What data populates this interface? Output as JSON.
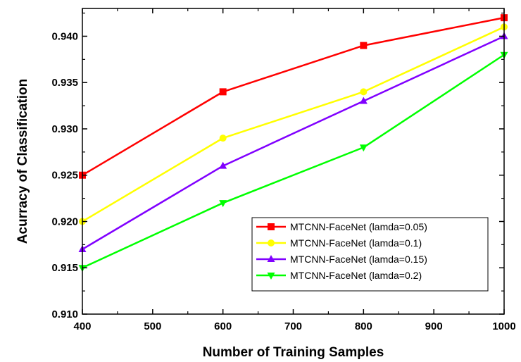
{
  "chart_data": {
    "type": "line",
    "xlabel": "Number of Training Samples",
    "ylabel": "Acurracy of Classification",
    "xlim": [
      400,
      1000
    ],
    "ylim": [
      0.91,
      0.943
    ],
    "x_ticks": [
      "400",
      "500",
      "600",
      "700",
      "800",
      "900",
      "1000"
    ],
    "y_ticks": [
      "0.910",
      "0.915",
      "0.920",
      "0.925",
      "0.930",
      "0.935",
      "0.940"
    ],
    "grid": false,
    "legend_position": "lower-right",
    "x": [
      400,
      600,
      800,
      1000
    ],
    "series": [
      {
        "name": "MTCNN-FaceNet  (lamda=0.05)",
        "color": "#ff0000",
        "marker": "square",
        "values": [
          0.925,
          0.934,
          0.939,
          0.942
        ]
      },
      {
        "name": "MTCNN-FaceNet  (lamda=0.1)",
        "color": "#ffff00",
        "marker": "circle",
        "values": [
          0.92,
          0.929,
          0.934,
          0.941
        ]
      },
      {
        "name": "MTCNN-FaceNet  (lamda=0.15)",
        "color": "#8000ff",
        "marker": "triangle-up",
        "values": [
          0.917,
          0.926,
          0.933,
          0.94
        ]
      },
      {
        "name": "MTCNN-FaceNet  (lamda=0.2)",
        "color": "#00ff00",
        "marker": "triangle-down",
        "values": [
          0.915,
          0.922,
          0.928,
          0.938
        ]
      }
    ]
  }
}
